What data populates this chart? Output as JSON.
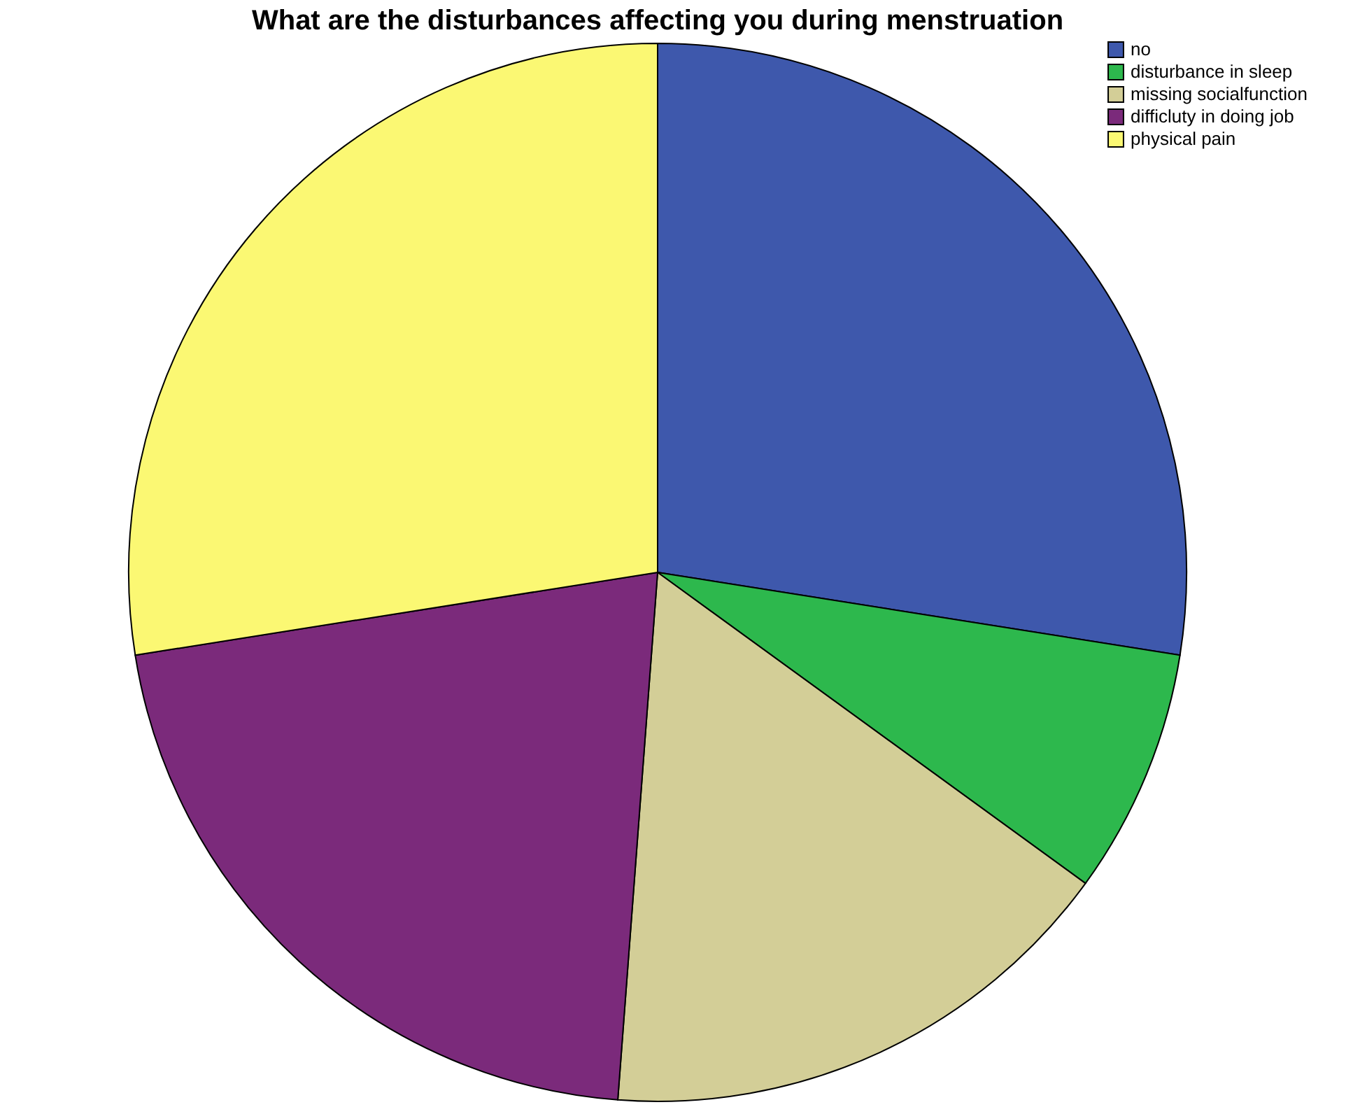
{
  "chart_data": {
    "type": "pie",
    "title": "What are the disturbances affecting you during menstruation",
    "categories": [
      "no",
      "disturbance in sleep",
      "missing socialfunction",
      "difficluty in doing job",
      "physical pain"
    ],
    "values": [
      27.5,
      7.5,
      16.2,
      21.3,
      27.5
    ],
    "colors": [
      "#3e58ac",
      "#2db84d",
      "#d3ce97",
      "#7b2a7b",
      "#fbf873"
    ],
    "legend": "top right"
  }
}
